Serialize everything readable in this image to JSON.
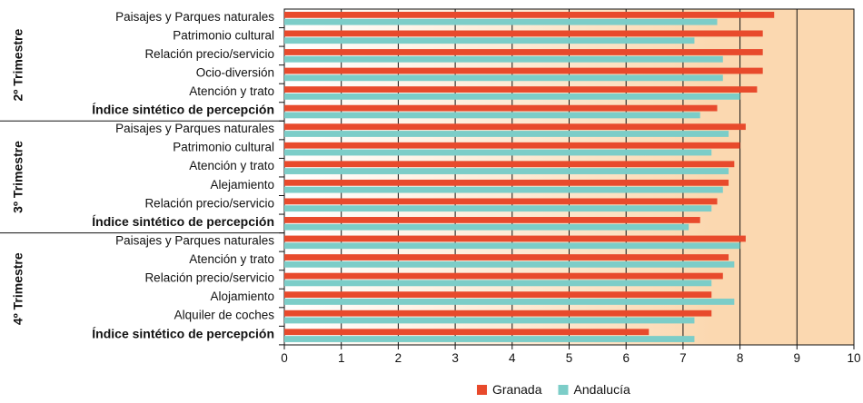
{
  "chart_data": {
    "type": "bar",
    "orientation": "horizontal",
    "xlim": [
      0,
      10
    ],
    "x_ticks": [
      "0",
      "1",
      "2",
      "3",
      "4",
      "5",
      "6",
      "7",
      "8",
      "9",
      "10"
    ],
    "series": [
      {
        "name": "Granada",
        "color": "#e84a2c"
      },
      {
        "name": "Andalucía",
        "color": "#7ccdc8"
      }
    ],
    "groups": [
      {
        "label": "2º Trimestre",
        "categories": [
          {
            "label": "Paisajes y Parques naturales",
            "bold": false,
            "values": [
              8.6,
              7.6
            ]
          },
          {
            "label": "Patrimonio cultural",
            "bold": false,
            "values": [
              8.4,
              7.2
            ]
          },
          {
            "label": "Relación precio/servicio",
            "bold": false,
            "values": [
              8.4,
              7.7
            ]
          },
          {
            "label": "Ocio-diversión",
            "bold": false,
            "values": [
              8.4,
              7.7
            ]
          },
          {
            "label": "Atención y trato",
            "bold": false,
            "values": [
              8.3,
              8.0
            ]
          },
          {
            "label": "Índice sintético de percepción",
            "bold": true,
            "values": [
              7.6,
              7.3
            ]
          }
        ]
      },
      {
        "label": "3º Trimestre",
        "categories": [
          {
            "label": "Paisajes y Parques naturales",
            "bold": false,
            "values": [
              8.1,
              7.8
            ]
          },
          {
            "label": "Patrimonio cultural",
            "bold": false,
            "values": [
              8.0,
              7.5
            ]
          },
          {
            "label": "Atención y trato",
            "bold": false,
            "values": [
              7.9,
              7.8
            ]
          },
          {
            "label": "Alejamiento",
            "bold": false,
            "values": [
              7.8,
              7.7
            ]
          },
          {
            "label": "Relación precio/servicio",
            "bold": false,
            "values": [
              7.6,
              7.5
            ]
          },
          {
            "label": "Índice sintético de percepción",
            "bold": true,
            "values": [
              7.3,
              7.1
            ]
          }
        ]
      },
      {
        "label": "4º Trimestre",
        "categories": [
          {
            "label": "Paisajes y Parques naturales",
            "bold": false,
            "values": [
              8.1,
              8.0
            ]
          },
          {
            "label": "Atención y trato",
            "bold": false,
            "values": [
              7.8,
              7.9
            ]
          },
          {
            "label": "Relación precio/servicio",
            "bold": false,
            "values": [
              7.7,
              7.5
            ]
          },
          {
            "label": "Alojamiento",
            "bold": false,
            "values": [
              7.5,
              7.9
            ]
          },
          {
            "label": "Alquiler de coches",
            "bold": false,
            "values": [
              7.5,
              7.2
            ]
          },
          {
            "label": "Índice sintético de percepción",
            "bold": true,
            "values": [
              6.4,
              7.2
            ]
          }
        ]
      }
    ],
    "legend": "bottom-right",
    "background_gradient_colors": [
      "#ffffff",
      "#fbd8b0"
    ]
  }
}
